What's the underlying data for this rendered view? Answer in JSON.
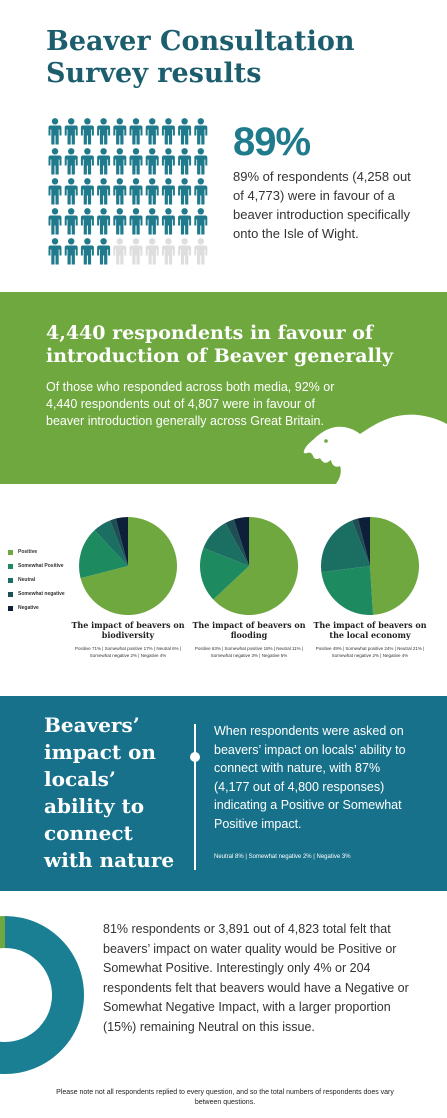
{
  "header": {
    "title": "Beaver Consultation Survey results"
  },
  "intro": {
    "percent": "89%",
    "text": "89% of respondents (4,258 out of 4,773) were in favour of a beaver introduction specifically onto the Isle of Wight."
  },
  "people_chart": {
    "total": 50,
    "filled": 44,
    "filled_color": "#1f7a8c",
    "empty_color": "#dedede",
    "icon": "person-icon"
  },
  "general": {
    "title": "4,440 respondents  in favour of introduction of Beaver generally",
    "text": "Of those who responded across both media, 92% or 4,440 respondents out of 4,807 were in favour of beaver introduction generally across Great Britain.",
    "background_color": "#6fa83e",
    "icon": "beaver-silhouette-icon"
  },
  "legend": [
    {
      "label": "Positive",
      "color": "#6fa83e"
    },
    {
      "label": "Somewhat Positive",
      "color": "#1e8a5f"
    },
    {
      "label": "Neutral",
      "color": "#1b6e62"
    },
    {
      "label": "Somewhat negative",
      "color": "#1d4f55"
    },
    {
      "label": "Negative",
      "color": "#0e1f3a"
    }
  ],
  "chart_data": [
    {
      "type": "pie",
      "title": "The impact of beavers on biodiversity",
      "categories": [
        "Positive",
        "Somewhat positive",
        "Neutral",
        "Somewhat negative",
        "Negative"
      ],
      "values": [
        71,
        17,
        6,
        2,
        4
      ],
      "note": "Positive 71% | Somewhat positive 17% | Neutral 6% | Somewhat negative 2% | Negative 4%"
    },
    {
      "type": "pie",
      "title": "The impact of beavers on flooding",
      "categories": [
        "Positive",
        "Somewhat positive",
        "Neutral",
        "Somewhat negative",
        "Negative"
      ],
      "values": [
        63,
        18,
        11,
        3,
        5
      ],
      "note": "Positive 63% | Somewhat positive 18% | Neutral 11% | Somewhat negative 3% | Negative 5%"
    },
    {
      "type": "pie",
      "title": "The impact of beavers on the local economy",
      "categories": [
        "Positive",
        "Somewhat positive",
        "Neutral",
        "Somewhat negative",
        "Negative"
      ],
      "values": [
        49,
        24,
        21,
        2,
        4
      ],
      "note": "Positive 49% | Somewhat positive 24% | Neutral 21% | Somewhat negative 2% | Negative 4%"
    },
    {
      "type": "pie",
      "variant": "donut",
      "categories": [
        "Positive or Somewhat Positive",
        "Neutral",
        "Negative or Somewhat Negative"
      ],
      "values": [
        81,
        15,
        4
      ],
      "colors": [
        "#1b7f93",
        "#6fa83e",
        "#6fa83e"
      ]
    }
  ],
  "nature": {
    "title": "Beavers’ impact on locals’ ability to connect with nature",
    "text": "When respondents were asked on beavers’ impact on locals’ ability to connect with nature, with 87% (4,177 out of 4,800 responses) indicating a Positive or Somewhat Positive impact.",
    "note": "Neutral 8% | Somewhat negative 2% | Negative 3%",
    "background_color": "#17718a"
  },
  "water": {
    "text": "81% respondents or 3,891 out of 4,823 total felt that beavers’ impact on water quality would be Positive or Somewhat Positive. Interestingly only 4% or 204 respondents felt that beavers would have a Negative or Somewhat Negative Impact, with a larger proportion (15%) remaining Neutral on this issue."
  },
  "footer": {
    "note": "Please note not all respondents replied to every question, and so the total numbers of respondents does vary between questions."
  }
}
